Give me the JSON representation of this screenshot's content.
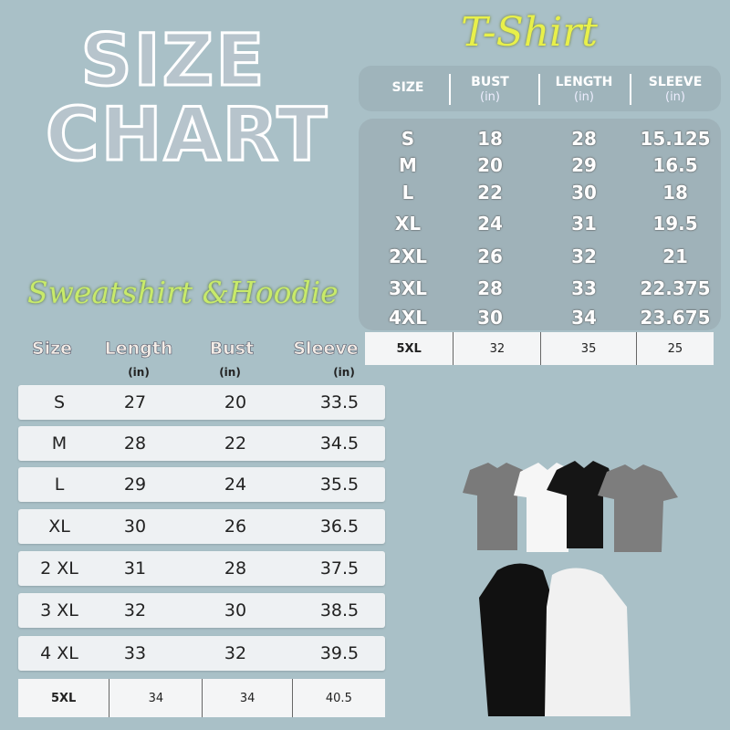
{
  "title": {
    "line1": "SIZE",
    "line2": "CHART"
  },
  "tshirt": {
    "heading": "T-Shirt",
    "headers": [
      {
        "label": "SIZE",
        "unit": ""
      },
      {
        "label": "BUST",
        "unit": "(in)"
      },
      {
        "label": "LENGTH",
        "unit": "(in)"
      },
      {
        "label": "SLEEVE",
        "unit": "(in)"
      }
    ],
    "rows": [
      [
        "S",
        "18",
        "28",
        "15.125"
      ],
      [
        "M",
        "20",
        "29",
        "16.5"
      ],
      [
        "L",
        "22",
        "30",
        "18"
      ],
      [
        "XL",
        "24",
        "31",
        "19.5"
      ],
      [
        "2XL",
        "26",
        "32",
        "21"
      ],
      [
        "3XL",
        "28",
        "33",
        "22.375"
      ],
      [
        "4XL",
        "30",
        "34",
        "23.675"
      ]
    ],
    "last_row": [
      "5XL",
      "32",
      "35",
      "25"
    ]
  },
  "sweatshirt": {
    "heading": "Sweatshirt &Hoodie",
    "headers": [
      {
        "label": "Size",
        "unit": ""
      },
      {
        "label": "Length",
        "unit": "(in)"
      },
      {
        "label": "Bust",
        "unit": "(in)"
      },
      {
        "label": "Sleeve",
        "unit": "(in)"
      }
    ],
    "rows": [
      [
        "S",
        "27",
        "20",
        "33.5"
      ],
      [
        "M",
        "28",
        "22",
        "34.5"
      ],
      [
        "L",
        "29",
        "24",
        "35.5"
      ],
      [
        "XL",
        "30",
        "26",
        "36.5"
      ],
      [
        "2 XL",
        "31",
        "28",
        "37.5"
      ],
      [
        "3 XL",
        "32",
        "30",
        "38.5"
      ],
      [
        "4 XL",
        "33",
        "32",
        "39.5"
      ]
    ],
    "last_row": [
      "5XL",
      "34",
      "34",
      "40.5"
    ]
  },
  "colors": {
    "background": "#a9c0c7",
    "tshirt_heading": "#e8f04a",
    "sweatshirt_heading": "#c8ea6a"
  },
  "images": {
    "tshirts": [
      "gray",
      "white",
      "black",
      "gray"
    ],
    "hoodies": [
      "black",
      "white"
    ]
  }
}
